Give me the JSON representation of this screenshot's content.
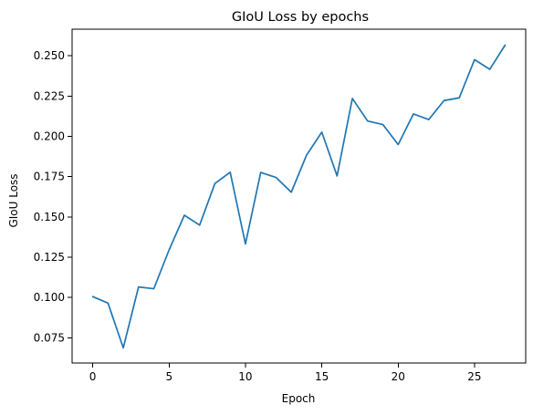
{
  "chart_data": {
    "type": "line",
    "title": "GIoU Loss by epochs",
    "xlabel": "Epoch",
    "ylabel": "GIoU Loss",
    "xlim": [
      -1.35,
      28.35
    ],
    "ylim": [
      0.0593,
      0.2665
    ],
    "xticks": [
      0,
      5,
      10,
      15,
      20,
      25
    ],
    "xtick_labels": [
      "0",
      "5",
      "10",
      "15",
      "20",
      "25"
    ],
    "yticks": [
      0.075,
      0.1,
      0.125,
      0.15,
      0.175,
      0.2,
      0.225,
      0.25
    ],
    "ytick_labels": [
      "0.075",
      "0.100",
      "0.125",
      "0.150",
      "0.175",
      "0.200",
      "0.225",
      "0.250"
    ],
    "grid": false,
    "legend": "none",
    "color": "#1f77b4",
    "x": [
      0,
      1,
      2,
      3,
      4,
      5,
      6,
      7,
      8,
      9,
      10,
      11,
      12,
      13,
      14,
      15,
      16,
      17,
      18,
      19,
      20,
      21,
      22,
      23,
      24,
      25,
      26,
      27
    ],
    "y": [
      0.1005,
      0.0965,
      0.0687,
      0.1065,
      0.1054,
      0.1295,
      0.151,
      0.1449,
      0.1707,
      0.1777,
      0.1332,
      0.1776,
      0.1745,
      0.1653,
      0.1883,
      0.2026,
      0.1754,
      0.2235,
      0.2095,
      0.2073,
      0.1949,
      0.2139,
      0.2104,
      0.2222,
      0.2239,
      0.2476,
      0.2416,
      0.2566
    ]
  }
}
